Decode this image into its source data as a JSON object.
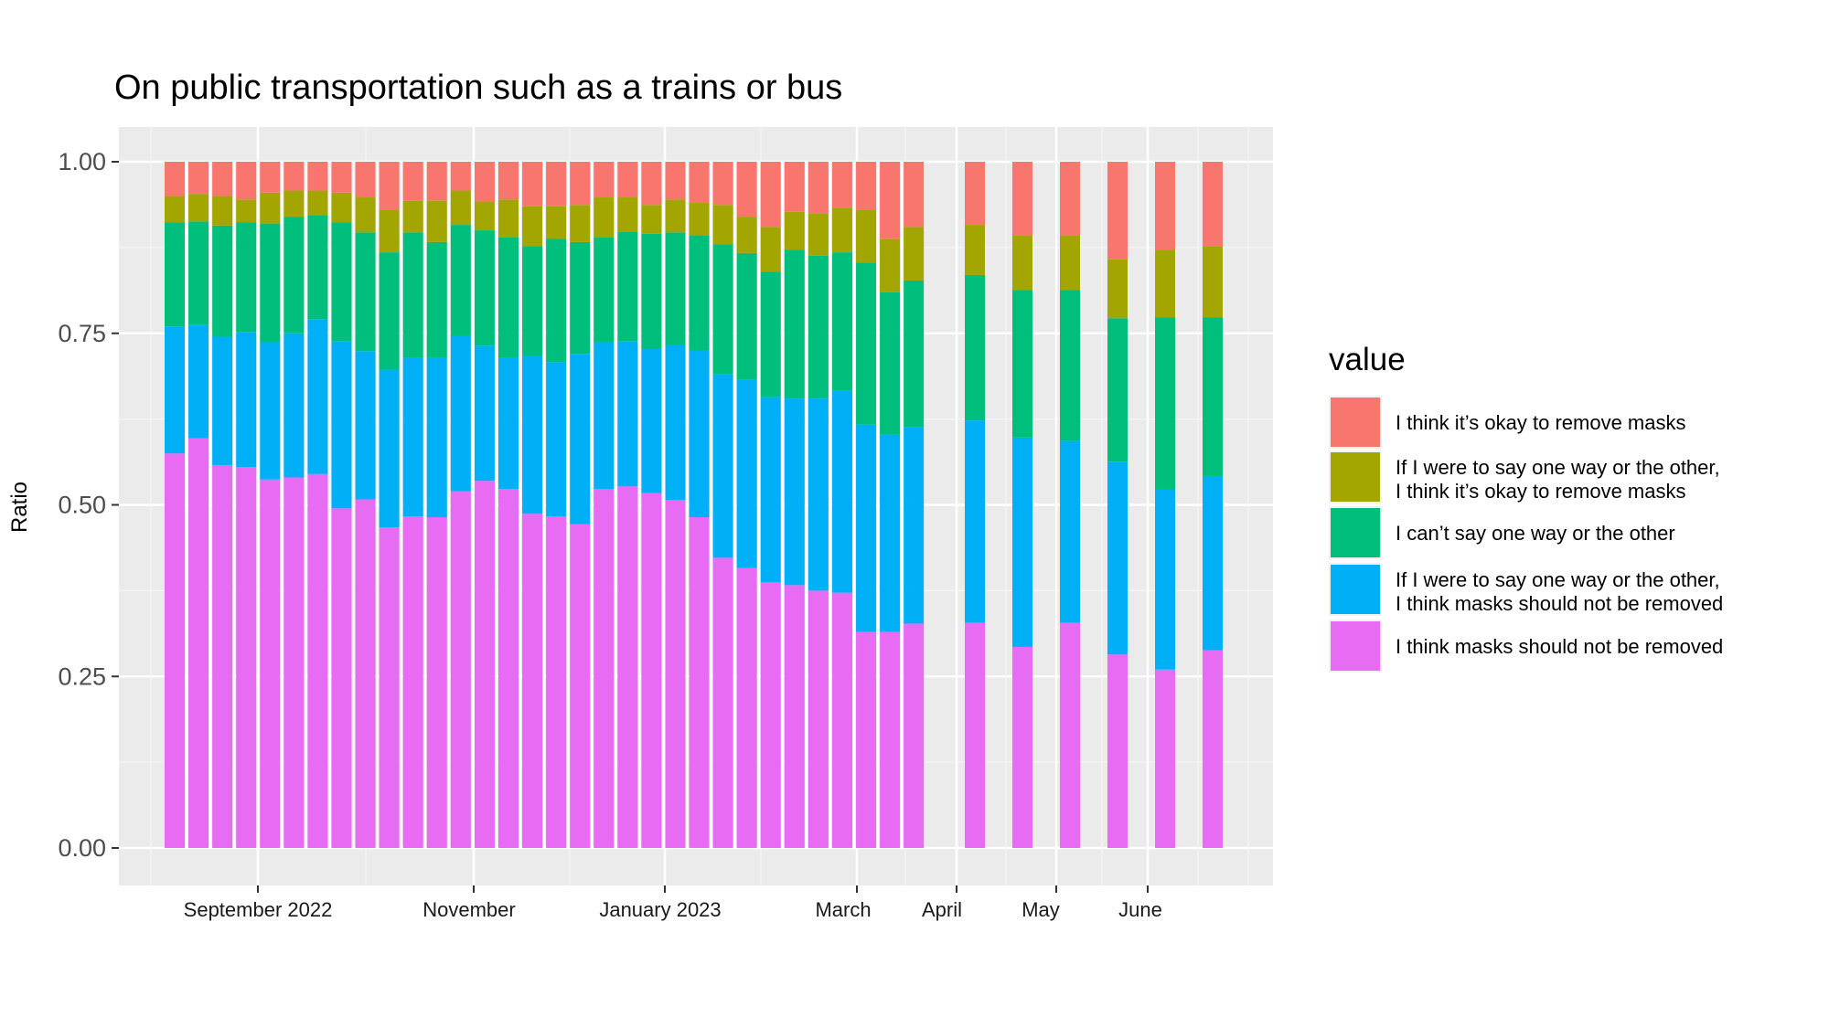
{
  "chart_data": {
    "type": "bar",
    "stacked": true,
    "title": "On public transportation such as a trains or bus",
    "ylabel": "Ratio",
    "xlabel": "",
    "ylim": [
      0,
      1
    ],
    "yticks": [
      "0.00",
      "0.25",
      "0.50",
      "0.75",
      "1.00"
    ],
    "xtick_labels": [
      "September 2022",
      "November",
      "January 2023",
      "March",
      "April",
      "May",
      "June"
    ],
    "grid": true,
    "legend": {
      "title": "value",
      "position": "right",
      "entries": [
        {
          "lines": [
            "I think it’s okay to remove masks"
          ],
          "color": "#F8766D"
        },
        {
          "lines": [
            "If I were to say one way or the other,",
            "I think it’s okay to remove  masks"
          ],
          "color": "#A3A500"
        },
        {
          "lines": [
            "I can’t say one way or the other"
          ],
          "color": "#00BF7D"
        },
        {
          "lines": [
            "If I were to say one way or the other,",
            "I think masks should not be removed"
          ],
          "color": "#00B0F6"
        },
        {
          "lines": [
            "I think masks should not be removed"
          ],
          "color": "#E76BF3"
        }
      ]
    },
    "stack_order_bottom_to_top": [
      "I think masks should not be removed",
      "If I were to say one way or the other, I think masks should not be removed",
      "I can’t say one way or the other",
      "If I were to say one way or the other, I think it’s okay to remove  masks",
      "I think it’s okay to remove masks"
    ],
    "cumulative_boundaries": [
      [
        0.575,
        0.76,
        0.912,
        0.95,
        1.0
      ],
      [
        0.597,
        0.762,
        0.913,
        0.953,
        1.0
      ],
      [
        0.558,
        0.745,
        0.907,
        0.95,
        1.0
      ],
      [
        0.555,
        0.752,
        0.912,
        0.945,
        1.0
      ],
      [
        0.537,
        0.737,
        0.91,
        0.955,
        1.0
      ],
      [
        0.54,
        0.75,
        0.92,
        0.958,
        1.0
      ],
      [
        0.545,
        0.77,
        0.922,
        0.958,
        1.0
      ],
      [
        0.495,
        0.738,
        0.912,
        0.955,
        1.0
      ],
      [
        0.508,
        0.724,
        0.897,
        0.948,
        1.0
      ],
      [
        0.467,
        0.697,
        0.868,
        0.93,
        1.0
      ],
      [
        0.483,
        0.715,
        0.897,
        0.943,
        1.0
      ],
      [
        0.482,
        0.715,
        0.883,
        0.943,
        1.0
      ],
      [
        0.52,
        0.747,
        0.908,
        0.958,
        1.0
      ],
      [
        0.535,
        0.732,
        0.9,
        0.942,
        1.0
      ],
      [
        0.523,
        0.715,
        0.89,
        0.945,
        1.0
      ],
      [
        0.487,
        0.717,
        0.877,
        0.935,
        1.0
      ],
      [
        0.483,
        0.708,
        0.888,
        0.935,
        1.0
      ],
      [
        0.472,
        0.72,
        0.883,
        0.937,
        1.0
      ],
      [
        0.523,
        0.737,
        0.89,
        0.948,
        1.0
      ],
      [
        0.527,
        0.738,
        0.898,
        0.948,
        1.0
      ],
      [
        0.517,
        0.727,
        0.895,
        0.937,
        1.0
      ],
      [
        0.507,
        0.733,
        0.897,
        0.945,
        1.0
      ],
      [
        0.482,
        0.725,
        0.893,
        0.94,
        1.0
      ],
      [
        0.423,
        0.69,
        0.88,
        0.937,
        1.0
      ],
      [
        0.408,
        0.683,
        0.867,
        0.92,
        1.0
      ],
      [
        0.387,
        0.657,
        0.84,
        0.905,
        1.0
      ],
      [
        0.383,
        0.655,
        0.872,
        0.927,
        1.0
      ],
      [
        0.375,
        0.655,
        0.863,
        0.925,
        1.0
      ],
      [
        0.372,
        0.667,
        0.868,
        0.933,
        1.0
      ],
      [
        0.315,
        0.617,
        0.853,
        0.93,
        1.0
      ],
      [
        0.315,
        0.602,
        0.81,
        0.887,
        1.0
      ],
      [
        0.327,
        0.613,
        0.827,
        0.905,
        1.0
      ],
      [
        0.328,
        0.623,
        0.835,
        0.908,
        1.0
      ],
      [
        0.293,
        0.598,
        0.813,
        0.893,
        1.0
      ],
      [
        0.328,
        0.593,
        0.813,
        0.893,
        1.0
      ],
      [
        0.282,
        0.563,
        0.772,
        0.858,
        1.0
      ],
      [
        0.26,
        0.522,
        0.773,
        0.872,
        1.0
      ],
      [
        0.288,
        0.542,
        0.773,
        0.877,
        1.0
      ]
    ]
  }
}
